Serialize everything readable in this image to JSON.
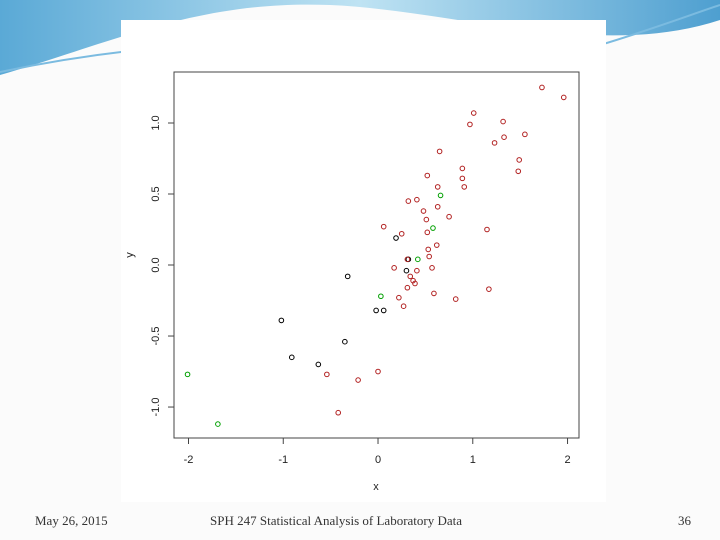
{
  "chart_data": {
    "type": "scatter",
    "x_label": "x",
    "y_label": "y",
    "xlim": [
      -2.153,
      2.121
    ],
    "ylim": [
      -1.218,
      1.359
    ],
    "xticks": [
      -2,
      -1,
      0,
      1,
      2
    ],
    "yticks": [
      {
        "value": -1,
        "label": "-1.0"
      },
      {
        "value": -0.5,
        "label": "-0.5"
      },
      {
        "value": 0,
        "label": "0.0"
      },
      0.5,
      {
        "value": 1,
        "label": "1.0"
      }
    ],
    "series": [
      {
        "color": "#000000",
        "x": [
          -1.02,
          -0.91,
          -0.63,
          -0.35,
          -0.32,
          -0.02,
          0.06,
          0.19,
          0.3,
          0.32
        ],
        "values": [
          -0.39,
          -0.65,
          -0.7,
          -0.54,
          -0.08,
          -0.32,
          -0.32,
          0.19,
          -0.04,
          0.04
        ]
      },
      {
        "color": "#00a000",
        "x": [
          -2.01,
          -1.69,
          0.03,
          0.42,
          0.58,
          0.66
        ],
        "values": [
          -0.77,
          -1.12,
          -0.22,
          0.04,
          0.26,
          0.49
        ]
      },
      {
        "color": "#b22222",
        "x": [
          1.73,
          1.96,
          1.01,
          1.32,
          0.97,
          1.55,
          1.33,
          1.23,
          0.65,
          1.49,
          0.89,
          1.48,
          0.89,
          0.52,
          0.63,
          0.91,
          0.41,
          0.32,
          0.48,
          0.63,
          0.51,
          0.75,
          0.06,
          1.15,
          0.25,
          0.52,
          0.62,
          0.53,
          0.54,
          0.17,
          0.31,
          0.57,
          0.41,
          0.34,
          0.37,
          0.39,
          0.31,
          1.17,
          0.59,
          0.82,
          0.22,
          0.27,
          0.0,
          -0.54,
          -0.21,
          -0.42
        ],
        "values": [
          1.25,
          1.18,
          1.07,
          1.01,
          0.99,
          0.92,
          0.9,
          0.86,
          0.8,
          0.74,
          0.68,
          0.66,
          0.61,
          0.63,
          0.55,
          0.55,
          0.46,
          0.45,
          0.38,
          0.41,
          0.32,
          0.34,
          0.27,
          0.25,
          0.22,
          0.23,
          0.14,
          0.11,
          0.06,
          -0.02,
          0.04,
          -0.02,
          -0.04,
          -0.08,
          -0.11,
          -0.13,
          -0.16,
          -0.17,
          -0.2,
          -0.24,
          -0.23,
          -0.29,
          -0.75,
          -0.77,
          -0.81,
          -1.04
        ]
      }
    ]
  },
  "footer": {
    "date": "May 26, 2015",
    "title": "SPH 247 Statistical Analysis of Laboratory Data",
    "page": "36"
  }
}
